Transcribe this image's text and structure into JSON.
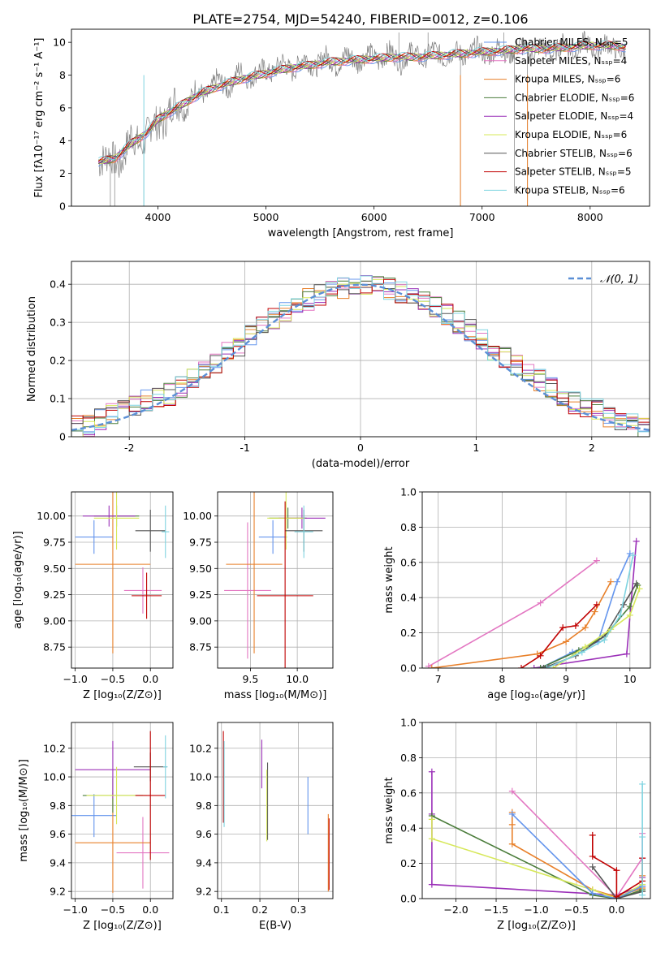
{
  "figure": {
    "title": "PLATE=2754, MJD=54240, FIBERID=0012, z=0.106"
  },
  "chart_data": [
    {
      "id": "spectrum",
      "type": "line",
      "xlabel": "wavelength [Angstrom, rest frame]",
      "ylabel": "Flux [fλ10⁻¹⁷ erg cm⁻² s⁻¹ A⁻¹]",
      "xlim": [
        3200,
        8550
      ],
      "ylim": [
        0,
        10.8
      ],
      "xticks": [
        4000,
        5000,
        6000,
        7000,
        8000
      ],
      "yticks": [
        0,
        2,
        4,
        6,
        8,
        10
      ],
      "grid": false,
      "legend_position": "upper-right",
      "series": [
        {
          "name": "Chabrier MILES, Nₛₛₚ=5",
          "color": "#6495ed"
        },
        {
          "name": "Salpeter MILES, Nₛₛₚ=4",
          "color": "#e377c2"
        },
        {
          "name": "Kroupa MILES, Nₛₛₚ=6",
          "color": "#e8802a"
        },
        {
          "name": "Chabrier ELODIE, Nₛₛₚ=6",
          "color": "#4a7c3a"
        },
        {
          "name": "Salpeter ELODIE, Nₛₛₚ=4",
          "color": "#9b30b8"
        },
        {
          "name": "Kroupa ELODIE, Nₛₛₚ=6",
          "color": "#d7e85a"
        },
        {
          "name": "Chabrier STELIB, Nₛₛₚ=6",
          "color": "#555555"
        },
        {
          "name": "Salpeter STELIB, Nₛₛₚ=5",
          "color": "#c00000"
        },
        {
          "name": "Kroupa STELIB, Nₛₛₚ=6",
          "color": "#7fd4e0"
        }
      ],
      "model_curve": {
        "x": [
          3450,
          3600,
          3750,
          3900,
          4000,
          4200,
          4400,
          4600,
          4800,
          5000,
          5200,
          5400,
          5600,
          5800,
          6000,
          6200,
          6400,
          6600,
          6800,
          7000,
          7200,
          7400,
          7600,
          7800,
          8000,
          8200,
          8330
        ],
        "y": [
          2.7,
          2.9,
          3.8,
          4.5,
          5.3,
          6.1,
          6.9,
          7.4,
          7.8,
          8.1,
          8.4,
          8.6,
          8.8,
          8.9,
          9.0,
          9.1,
          9.1,
          9.2,
          9.3,
          9.4,
          9.5,
          9.6,
          9.6,
          9.7,
          9.8,
          9.8,
          9.7
        ]
      },
      "data_curve": {
        "x": [
          3450,
          3550,
          3650,
          3750,
          3850,
          3950,
          4050,
          4150,
          4250,
          4350,
          4450,
          4550,
          4650,
          4750,
          4850,
          4950,
          5050,
          5150,
          5250,
          5350,
          5450,
          5550,
          5650,
          5750,
          5850,
          5950,
          6050,
          6150,
          6250,
          6350,
          6450,
          6550,
          6650,
          6750,
          6850,
          6950,
          7050,
          7150,
          7250,
          7350,
          7450,
          7550,
          7650,
          7750,
          7850,
          7950,
          8050,
          8150,
          8250,
          8330
        ],
        "y": [
          2.6,
          3.2,
          2.4,
          4.4,
          3.6,
          5.2,
          4.9,
          6.5,
          5.7,
          7.3,
          6.6,
          7.9,
          7.0,
          8.4,
          7.6,
          8.5,
          8.0,
          8.9,
          8.1,
          9.2,
          8.3,
          9.3,
          8.4,
          9.4,
          8.6,
          9.5,
          8.7,
          9.6,
          8.6,
          9.6,
          8.8,
          9.7,
          8.9,
          9.6,
          9.0,
          9.8,
          9.0,
          9.8,
          9.1,
          9.9,
          9.2,
          9.9,
          9.2,
          10.0,
          9.3,
          10.1,
          9.4,
          10.0,
          9.5,
          9.4
        ]
      }
    },
    {
      "id": "residual-histogram",
      "type": "histogram",
      "xlabel": "(data-model)/error",
      "ylabel": "Normed distribution",
      "xlim": [
        -2.5,
        2.5
      ],
      "ylim": [
        0,
        0.46
      ],
      "xticks": [
        -2,
        -1,
        0,
        1,
        2
      ],
      "yticks": [
        0.0,
        0.1,
        0.2,
        0.3,
        0.4
      ],
      "grid": true,
      "legend_position": "upper-right",
      "reference_label": "𝒩(0, 1)",
      "bin_edges": [
        -2.5,
        -2.4,
        -2.3,
        -2.2,
        -2.1,
        -2.0,
        -1.9,
        -1.8,
        -1.7,
        -1.6,
        -1.5,
        -1.4,
        -1.3,
        -1.2,
        -1.1,
        -1.0,
        -0.9,
        -0.8,
        -0.7,
        -0.6,
        -0.5,
        -0.4,
        -0.3,
        -0.2,
        -0.1,
        0.0,
        0.1,
        0.2,
        0.3,
        0.4,
        0.5,
        0.6,
        0.7,
        0.8,
        0.9,
        1.0,
        1.1,
        1.2,
        1.3,
        1.4,
        1.5,
        1.6,
        1.7,
        1.8,
        1.9,
        2.0,
        2.1,
        2.2,
        2.3,
        2.4,
        2.5
      ],
      "base_counts": [
        0.025,
        0.03,
        0.045,
        0.06,
        0.07,
        0.08,
        0.095,
        0.1,
        0.11,
        0.13,
        0.15,
        0.17,
        0.19,
        0.22,
        0.24,
        0.27,
        0.29,
        0.31,
        0.33,
        0.35,
        0.36,
        0.37,
        0.38,
        0.39,
        0.395,
        0.4,
        0.395,
        0.39,
        0.38,
        0.37,
        0.355,
        0.34,
        0.32,
        0.3,
        0.28,
        0.26,
        0.23,
        0.21,
        0.19,
        0.17,
        0.15,
        0.13,
        0.11,
        0.09,
        0.08,
        0.07,
        0.055,
        0.045,
        0.035,
        0.025
      ]
    },
    {
      "id": "age-vs-z",
      "type": "scatter",
      "xlabel": "Z [log₁₀(Z/Z⊙)]",
      "ylabel": "age  [log₁₀(age/yr)]",
      "xlim": [
        -1.05,
        0.3
      ],
      "ylim": [
        8.55,
        10.23
      ],
      "xticks": [
        -1.0,
        -0.5,
        0.0
      ],
      "yticks": [
        8.75,
        9.0,
        9.25,
        9.5,
        9.75,
        10.0
      ],
      "xtick_labels": [
        "−1.0",
        "−0.5",
        "0.0"
      ],
      "ytick_labels": [
        "8.75",
        "9.00",
        "9.25",
        "9.50",
        "9.75",
        "10.00"
      ],
      "grid": true,
      "points": [
        {
          "x": -0.75,
          "y": 9.8,
          "xerr": 0.25,
          "yerr": 0.16,
          "color": "#6495ed"
        },
        {
          "x": -0.1,
          "y": 9.29,
          "xerr": 0.25,
          "yerr": 0.22,
          "color": "#e377c2"
        },
        {
          "x": -0.5,
          "y": 9.54,
          "xerr": 0.5,
          "yerr": 0.85,
          "color": "#e8802a"
        },
        {
          "x": -0.45,
          "y": 10.0,
          "xerr": 0.3,
          "yerr": 0.1,
          "color": "#4a7c3a"
        },
        {
          "x": -0.55,
          "y": 10.0,
          "xerr": 0.35,
          "yerr": 0.1,
          "color": "#9b30b8"
        },
        {
          "x": -0.45,
          "y": 9.98,
          "xerr": 0.3,
          "yerr": 0.3,
          "color": "#d7e85a"
        },
        {
          "x": 0.0,
          "y": 9.86,
          "xerr": 0.2,
          "yerr": 0.2,
          "color": "#555555"
        },
        {
          "x": -0.05,
          "y": 9.24,
          "xerr": 0.2,
          "yerr": 0.22,
          "color": "#c00000"
        },
        {
          "x": 0.2,
          "y": 9.85,
          "xerr": 0.05,
          "yerr": 0.25,
          "color": "#7fd4e0"
        }
      ]
    },
    {
      "id": "age-vs-mass",
      "type": "scatter",
      "xlabel": "mass [log₁₀(M/M⊙)]",
      "ylabel": "",
      "xlim": [
        9.15,
        10.38
      ],
      "ylim": [
        8.55,
        10.23
      ],
      "xticks": [
        9.5,
        10.0
      ],
      "yticks": [
        8.75,
        9.0,
        9.25,
        9.5,
        9.75,
        10.0
      ],
      "xtick_labels": [
        "9.5",
        "10.0"
      ],
      "ytick_labels": [
        "8.75",
        "9.00",
        "9.25",
        "9.50",
        "9.75",
        "10.00"
      ],
      "grid": true,
      "points": [
        {
          "x": 9.74,
          "y": 9.8,
          "xerr": 0.15,
          "yerr": 0.16,
          "color": "#6495ed"
        },
        {
          "x": 9.47,
          "y": 9.29,
          "xerr": 0.25,
          "yerr": 0.65,
          "color": "#e377c2"
        },
        {
          "x": 9.54,
          "y": 9.54,
          "xerr": 0.3,
          "yerr": 0.85,
          "color": "#e8802a"
        },
        {
          "x": 9.9,
          "y": 9.98,
          "xerr": 0.2,
          "yerr": 0.1,
          "color": "#4a7c3a"
        },
        {
          "x": 10.05,
          "y": 9.98,
          "xerr": 0.25,
          "yerr": 0.1,
          "color": "#9b30b8"
        },
        {
          "x": 9.88,
          "y": 9.98,
          "xerr": 0.2,
          "yerr": 0.3,
          "color": "#d7e85a"
        },
        {
          "x": 10.07,
          "y": 9.86,
          "xerr": 0.2,
          "yerr": 0.2,
          "color": "#555555"
        },
        {
          "x": 9.87,
          "y": 9.24,
          "xerr": 0.3,
          "yerr": 0.9,
          "color": "#c00000"
        },
        {
          "x": 10.07,
          "y": 9.85,
          "xerr": 0.1,
          "yerr": 0.25,
          "color": "#7fd4e0"
        }
      ]
    },
    {
      "id": "mass-weight-vs-age",
      "type": "line",
      "xlabel": "age  [log₁₀(age/yr)]",
      "ylabel": "mass weight",
      "xlim": [
        6.75,
        10.32
      ],
      "ylim": [
        0,
        1.0
      ],
      "xticks": [
        7,
        8,
        9,
        10
      ],
      "yticks": [
        0.0,
        0.2,
        0.4,
        0.6,
        0.8,
        1.0
      ],
      "xtick_labels": [
        "7",
        "8",
        "9",
        "10"
      ],
      "ytick_labels": [
        "0.0",
        "0.2",
        "0.4",
        "0.6",
        "0.8",
        "1.0"
      ],
      "grid": true,
      "series": [
        {
          "color": "#e377c2",
          "x": [
            6.85,
            8.6,
            9.48
          ],
          "y": [
            0.01,
            0.37,
            0.61
          ]
        },
        {
          "color": "#e8802a",
          "x": [
            6.9,
            8.55,
            9.0,
            9.3,
            9.45,
            9.7
          ],
          "y": [
            0.0,
            0.08,
            0.15,
            0.23,
            0.32,
            0.49
          ]
        },
        {
          "color": "#c00000",
          "x": [
            8.3,
            8.6,
            8.95,
            9.15,
            9.48
          ],
          "y": [
            0.0,
            0.07,
            0.23,
            0.24,
            0.36
          ]
        },
        {
          "color": "#9b30b8",
          "x": [
            8.5,
            9.95,
            10.1
          ],
          "y": [
            0.0,
            0.08,
            0.72
          ]
        },
        {
          "color": "#6495ed",
          "x": [
            8.6,
            9.1,
            9.5,
            9.8,
            10.0
          ],
          "y": [
            0.0,
            0.09,
            0.15,
            0.49,
            0.65
          ]
        },
        {
          "color": "#4a7c3a",
          "x": [
            8.6,
            9.2,
            9.6,
            10.0,
            10.12
          ],
          "y": [
            0.0,
            0.1,
            0.18,
            0.35,
            0.47
          ]
        },
        {
          "color": "#555555",
          "x": [
            8.65,
            9.15,
            9.6,
            9.9,
            10.1
          ],
          "y": [
            0.0,
            0.07,
            0.18,
            0.36,
            0.48
          ]
        },
        {
          "color": "#d7e85a",
          "x": [
            8.8,
            9.3,
            9.7,
            10.0,
            10.15
          ],
          "y": [
            0.0,
            0.12,
            0.22,
            0.3,
            0.45
          ]
        },
        {
          "color": "#7fd4e0",
          "x": [
            8.7,
            9.25,
            9.6,
            9.85,
            10.05
          ],
          "y": [
            0.0,
            0.09,
            0.16,
            0.3,
            0.64
          ]
        }
      ]
    },
    {
      "id": "mass-vs-z",
      "type": "scatter",
      "xlabel": "Z [log₁₀(Z/Z⊙)]",
      "ylabel": "mass [log₁₀(M/M⊙)]",
      "xlim": [
        -1.05,
        0.3
      ],
      "ylim": [
        9.15,
        10.38
      ],
      "xticks": [
        -1.0,
        -0.5,
        0.0
      ],
      "yticks": [
        9.2,
        9.4,
        9.6,
        9.8,
        10.0,
        10.2
      ],
      "xtick_labels": [
        "−1.0",
        "−0.5",
        "0.0"
      ],
      "ytick_labels": [
        "9.2",
        "9.4",
        "9.6",
        "9.8",
        "10.0",
        "10.2"
      ],
      "grid": true,
      "points": [
        {
          "x": -0.75,
          "y": 9.73,
          "xerr": 0.3,
          "yerr": 0.15,
          "color": "#6495ed"
        },
        {
          "x": -0.1,
          "y": 9.47,
          "xerr": 0.35,
          "yerr": 0.25,
          "color": "#e377c2"
        },
        {
          "x": -0.5,
          "y": 9.54,
          "xerr": 0.5,
          "yerr": 0.35,
          "color": "#e8802a"
        },
        {
          "x": -0.5,
          "y": 9.87,
          "xerr": 0.4,
          "yerr": 0.12,
          "color": "#4a7c3a"
        },
        {
          "x": -0.5,
          "y": 10.05,
          "xerr": 0.5,
          "yerr": 0.2,
          "color": "#9b30b8"
        },
        {
          "x": -0.45,
          "y": 9.87,
          "xerr": 0.4,
          "yerr": 0.2,
          "color": "#d7e85a"
        },
        {
          "x": 0.0,
          "y": 10.07,
          "xerr": 0.22,
          "yerr": 0.1,
          "color": "#555555"
        },
        {
          "x": 0.0,
          "y": 9.87,
          "xerr": 0.2,
          "yerr": 0.45,
          "color": "#c00000"
        },
        {
          "x": 0.2,
          "y": 10.07,
          "xerr": 0.03,
          "yerr": 0.22,
          "color": "#7fd4e0"
        }
      ]
    },
    {
      "id": "mass-vs-ebv",
      "type": "scatter",
      "xlabel": "E(B-V)",
      "ylabel": "",
      "xlim": [
        0.09,
        0.39
      ],
      "ylim": [
        9.15,
        10.38
      ],
      "xticks": [
        0.1,
        0.2,
        0.3
      ],
      "yticks": [
        9.2,
        9.4,
        9.6,
        9.8,
        10.0,
        10.2
      ],
      "xtick_labels": [
        "0.1",
        "0.2",
        "0.3"
      ],
      "ytick_labels": [
        "9.2",
        "9.4",
        "9.6",
        "9.8",
        "10.0",
        "10.2"
      ],
      "grid": true,
      "points": [
        {
          "x": 0.105,
          "y": 10.0,
          "xerr": 0,
          "yerr": 0.32,
          "color": "#c00000"
        },
        {
          "x": 0.107,
          "y": 9.95,
          "xerr": 0,
          "yerr": 0.3,
          "color": "#7fd4e0"
        },
        {
          "x": 0.205,
          "y": 10.09,
          "xerr": 0,
          "yerr": 0.17,
          "color": "#9b30b8"
        },
        {
          "x": 0.22,
          "y": 9.83,
          "xerr": 0,
          "yerr": 0.27,
          "color": "#555555"
        },
        {
          "x": 0.218,
          "y": 9.8,
          "xerr": 0,
          "yerr": 0.25,
          "color": "#d7e85a"
        },
        {
          "x": 0.325,
          "y": 9.8,
          "xerr": 0,
          "yerr": 0.2,
          "color": "#6495ed"
        },
        {
          "x": 0.378,
          "y": 9.47,
          "xerr": 0,
          "yerr": 0.27,
          "color": "#e8802a"
        },
        {
          "x": 0.38,
          "y": 9.46,
          "xerr": 0,
          "yerr": 0.25,
          "color": "#c00000"
        }
      ]
    },
    {
      "id": "mass-weight-vs-z",
      "type": "line",
      "xlabel": "Z [log₁₀(Z/Z⊙)]",
      "ylabel": "mass weight",
      "xlim": [
        -2.42,
        0.42
      ],
      "ylim": [
        0,
        1.0
      ],
      "xticks": [
        -2.0,
        -1.5,
        -1.0,
        -0.5,
        0.0
      ],
      "yticks": [
        0.0,
        0.2,
        0.4,
        0.6,
        0.8,
        1.0
      ],
      "xtick_labels": [
        "−2.0",
        "−1.5",
        "−1.0",
        "−0.5",
        "0.0"
      ],
      "ytick_labels": [
        "0.0",
        "0.2",
        "0.4",
        "0.6",
        "0.8",
        "1.0"
      ],
      "grid": true,
      "series": [
        {
          "color": "#9b30b8",
          "x": [
            -2.3,
            -2.3,
            -2.3,
            0.0,
            0.32,
            0.32
          ],
          "y": [
            0.72,
            0.48,
            0.08,
            0.02,
            0.07,
            0.12
          ]
        },
        {
          "color": "#e377c2",
          "x": [
            -1.3,
            0.0,
            0.32,
            0.32
          ],
          "y": [
            0.61,
            0.01,
            0.23,
            0.37
          ]
        },
        {
          "color": "#e8802a",
          "x": [
            -1.3,
            -1.3,
            -1.3,
            -0.3,
            0.0,
            0.32,
            0.32
          ],
          "y": [
            0.49,
            0.42,
            0.31,
            0.05,
            0.01,
            0.06,
            0.13
          ]
        },
        {
          "color": "#4a7c3a",
          "x": [
            -2.3,
            -0.3,
            0.0,
            0.32
          ],
          "y": [
            0.47,
            0.02,
            0.0,
            0.05
          ]
        },
        {
          "color": "#d7e85a",
          "x": [
            -2.3,
            -2.3,
            -0.3,
            0.0,
            0.32
          ],
          "y": [
            0.45,
            0.34,
            0.05,
            0.0,
            0.08
          ]
        },
        {
          "color": "#6495ed",
          "x": [
            -1.3,
            -0.3,
            0.0,
            0.32
          ],
          "y": [
            0.48,
            0.03,
            0.0,
            0.07
          ]
        },
        {
          "color": "#555555",
          "x": [
            -0.3,
            0.0,
            0.32
          ],
          "y": [
            0.18,
            0.0,
            0.04
          ]
        },
        {
          "color": "#c00000",
          "x": [
            -0.3,
            -0.3,
            0.0,
            0.0,
            0.32,
            0.32
          ],
          "y": [
            0.36,
            0.24,
            0.16,
            0.01,
            0.1,
            0.23
          ]
        },
        {
          "color": "#7fd4e0",
          "x": [
            0.32,
            0.32,
            0.32
          ],
          "y": [
            0.65,
            0.35,
            0.02
          ]
        }
      ]
    }
  ]
}
